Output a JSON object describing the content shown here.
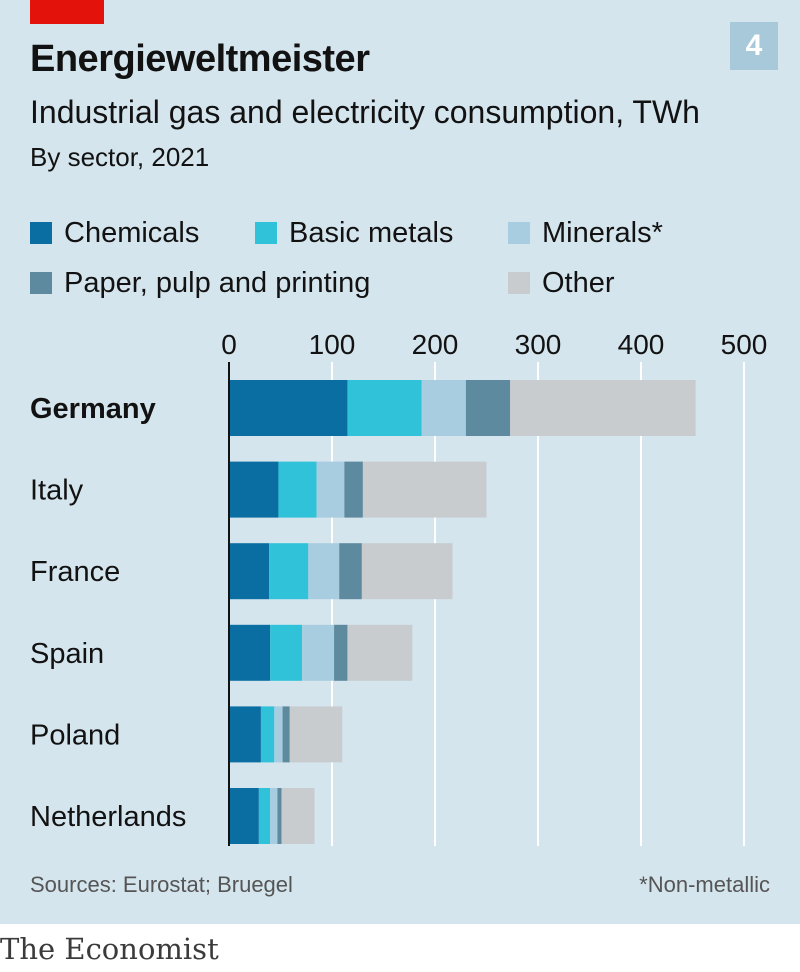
{
  "header": {
    "title": "Energieweltmeister",
    "badge": "4",
    "subtitle": "Industrial gas and electricity consumption, TWh",
    "subsubtitle": "By sector, 2021"
  },
  "colors": {
    "Chemicals": "#0a6ea2",
    "Basic metals": "#2fc2d8",
    "Minerals*": "#a9cde0",
    "Paper, pulp and printing": "#5e8a9f",
    "Other": "#c8cccf",
    "panel_bg": "#d5e5ee",
    "accent_red": "#e3120b"
  },
  "legend": {
    "items": [
      "Chemicals",
      "Basic metals",
      "Minerals*",
      "Paper, pulp and printing",
      "Other"
    ]
  },
  "chart_data": {
    "type": "bar",
    "orientation": "horizontal",
    "stacked": true,
    "categories": [
      "Germany",
      "Italy",
      "France",
      "Spain",
      "Poland",
      "Netherlands"
    ],
    "series": [
      {
        "name": "Chemicals",
        "values": [
          115,
          48,
          39,
          40,
          31,
          29
        ]
      },
      {
        "name": "Basic metals",
        "values": [
          72,
          37,
          38,
          31,
          13,
          11
        ]
      },
      {
        "name": "Minerals*",
        "values": [
          43,
          27,
          30,
          31,
          8,
          7
        ]
      },
      {
        "name": "Paper, pulp and printing",
        "values": [
          43,
          18,
          22,
          13,
          7,
          4
        ]
      },
      {
        "name": "Other",
        "values": [
          180,
          120,
          88,
          63,
          51,
          32
        ]
      }
    ],
    "xticks": [
      0,
      100,
      200,
      300,
      400,
      500
    ],
    "xlim": [
      0,
      500
    ],
    "grid": true,
    "legend_position": "top",
    "highlight_category": "Germany"
  },
  "footer": {
    "source": "Sources: Eurostat; Bruegel",
    "footnote": "*Non-metallic",
    "logo": "The Economist"
  }
}
